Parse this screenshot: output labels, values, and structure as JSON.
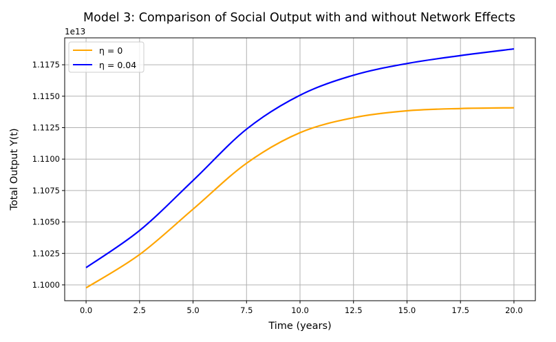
{
  "chart_data": {
    "type": "line",
    "title": "Model 3: Comparison of Social Output with and without Network Effects",
    "xlabel": "Time (years)",
    "ylabel": "Total Output Y(t)",
    "y_offset_label": "1e13",
    "xlim": [
      -1.0,
      21.0
    ],
    "ylim": [
      1.09874,
      1.11964
    ],
    "x_ticks": [
      0,
      2.5,
      5,
      7.5,
      10,
      12.5,
      15,
      17.5,
      20
    ],
    "x_tick_labels": [
      "0.0",
      "2.5",
      "5.0",
      "7.5",
      "10.0",
      "12.5",
      "15.0",
      "17.5",
      "20.0"
    ],
    "y_ticks": [
      1.1,
      1.1025,
      1.105,
      1.1075,
      1.11,
      1.1125,
      1.115,
      1.1175
    ],
    "y_tick_labels": [
      "1.1000",
      "1.1025",
      "1.1050",
      "1.1075",
      "1.1100",
      "1.1125",
      "1.1150",
      "1.1175"
    ],
    "grid": true,
    "legend_position": "top-left",
    "x": [
      0,
      2.5,
      5,
      7.5,
      10,
      12.5,
      15,
      17.5,
      20
    ],
    "series": [
      {
        "name": "η = 0",
        "color": "#FFA500",
        "values": [
          1.09976,
          1.10241,
          1.10602,
          1.10967,
          1.1121,
          1.11329,
          1.11384,
          1.11402,
          1.11408
        ]
      },
      {
        "name": "η = 0.04",
        "color": "#0000FF",
        "values": [
          1.10137,
          1.10432,
          1.1083,
          1.11238,
          1.11508,
          1.11667,
          1.1176,
          1.11823,
          1.11876
        ]
      }
    ]
  }
}
